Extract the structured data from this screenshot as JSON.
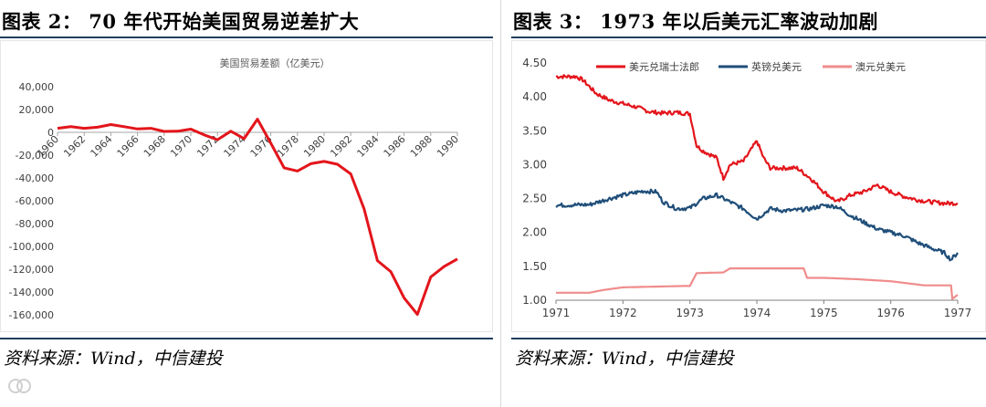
{
  "left": {
    "fig_title": "图表 2：  70 年代开始美国贸易逆差扩大",
    "source": "资料来源：Wind，中信建投",
    "chart_data": {
      "type": "line",
      "title": "美国贸易差额（亿美元）",
      "xlabel": "",
      "ylabel": "",
      "ylim": [
        -160000,
        40000
      ],
      "yticks": [
        40000,
        20000,
        0,
        -20000,
        -40000,
        -60000,
        -80000,
        -100000,
        -120000,
        -140000,
        -160000
      ],
      "ytick_labels": [
        "40,000",
        "20,000",
        "0",
        "-20,000",
        "-40,000",
        "-60,000",
        "-80,000",
        "-100,000",
        "-120,000",
        "-140,000",
        "-160,000"
      ],
      "xlim": [
        1960,
        1990
      ],
      "xtick_labels": [
        "1960",
        "1962",
        "1964",
        "1966",
        "1968",
        "1970",
        "1972",
        "1974",
        "1976",
        "1978",
        "1980",
        "1982",
        "1984",
        "1986",
        "1988",
        "1990"
      ],
      "series": [
        {
          "name": "美国贸易差额",
          "color": "#e3151b",
          "x": [
            1960,
            1961,
            1962,
            1963,
            1964,
            1965,
            1966,
            1967,
            1968,
            1969,
            1970,
            1971,
            1972,
            1973,
            1974,
            1975,
            1976,
            1977,
            1978,
            1979,
            1980,
            1981,
            1982,
            1983,
            1984,
            1985,
            1986,
            1987,
            1988,
            1989,
            1990
          ],
          "values": [
            3500,
            5000,
            3500,
            4500,
            6800,
            5000,
            3000,
            3500,
            800,
            1000,
            2800,
            -2200,
            -6500,
            1000,
            -5500,
            11500,
            -9500,
            -31100,
            -33900,
            -27500,
            -25500,
            -28000,
            -36500,
            -67100,
            -112500,
            -122100,
            -145100,
            -159600,
            -126900,
            -117700,
            -111000
          ]
        }
      ]
    }
  },
  "right": {
    "fig_title": "图表 3：  1973 年以后美元汇率波动加剧",
    "source": "资料来源：Wind，中信建投",
    "chart_data": {
      "type": "line",
      "title": "",
      "xlabel": "",
      "ylabel": "",
      "ylim": [
        1.0,
        4.5
      ],
      "yticks": [
        4.5,
        4.0,
        3.5,
        3.0,
        2.5,
        2.0,
        1.5,
        1.0
      ],
      "ytick_labels": [
        "4.50",
        "4.00",
        "3.50",
        "3.00",
        "2.50",
        "2.00",
        "1.50",
        "1.00"
      ],
      "xlim": [
        1971,
        1977
      ],
      "xtick_labels": [
        "1971",
        "1972",
        "1973",
        "1974",
        "1975",
        "1976",
        "1977"
      ],
      "legend_position": "top",
      "series": [
        {
          "name": "美元兑瑞士法郎",
          "color": "#e3151b",
          "x": [
            1971.0,
            1971.3,
            1971.4,
            1971.6,
            1971.8,
            1972.0,
            1972.2,
            1972.4,
            1972.6,
            1972.8,
            1973.0,
            1973.1,
            1973.2,
            1973.4,
            1973.5,
            1973.6,
            1973.8,
            1974.0,
            1974.1,
            1974.2,
            1974.4,
            1974.6,
            1974.8,
            1975.0,
            1975.2,
            1975.4,
            1975.6,
            1975.8,
            1976.0,
            1976.2,
            1976.4,
            1976.6,
            1976.8,
            1977.0
          ],
          "values": [
            4.3,
            4.3,
            4.25,
            4.05,
            3.95,
            3.9,
            3.85,
            3.78,
            3.76,
            3.77,
            3.75,
            3.28,
            3.2,
            3.1,
            2.8,
            3.0,
            3.05,
            3.35,
            3.1,
            2.95,
            2.95,
            2.95,
            2.8,
            2.6,
            2.45,
            2.55,
            2.6,
            2.7,
            2.6,
            2.53,
            2.48,
            2.45,
            2.43,
            2.43
          ]
        },
        {
          "name": "英镑兑美元",
          "color": "#1f4e79",
          "x": [
            1971.0,
            1971.5,
            1971.8,
            1972.0,
            1972.3,
            1972.5,
            1972.6,
            1972.8,
            1973.0,
            1973.2,
            1973.4,
            1973.6,
            1973.8,
            1974.0,
            1974.2,
            1974.4,
            1974.6,
            1974.8,
            1975.0,
            1975.2,
            1975.4,
            1975.6,
            1975.8,
            1976.0,
            1976.2,
            1976.4,
            1976.6,
            1976.8,
            1976.9,
            1977.0
          ],
          "values": [
            2.4,
            2.41,
            2.5,
            2.55,
            2.61,
            2.6,
            2.45,
            2.35,
            2.36,
            2.5,
            2.55,
            2.45,
            2.35,
            2.2,
            2.35,
            2.32,
            2.33,
            2.35,
            2.4,
            2.38,
            2.25,
            2.15,
            2.05,
            2.0,
            1.95,
            1.85,
            1.77,
            1.7,
            1.6,
            1.7
          ]
        },
        {
          "name": "澳元兑美元",
          "color": "#f08c8c",
          "x": [
            1971.0,
            1971.5,
            1971.7,
            1972.0,
            1972.9,
            1973.0,
            1973.1,
            1973.5,
            1973.6,
            1974.0,
            1974.5,
            1974.7,
            1974.75,
            1975.0,
            1975.5,
            1976.0,
            1976.5,
            1976.9,
            1976.92,
            1977.0
          ],
          "values": [
            1.11,
            1.11,
            1.15,
            1.19,
            1.21,
            1.21,
            1.4,
            1.41,
            1.47,
            1.47,
            1.47,
            1.47,
            1.33,
            1.33,
            1.31,
            1.28,
            1.22,
            1.22,
            1.02,
            1.08
          ]
        }
      ]
    }
  }
}
